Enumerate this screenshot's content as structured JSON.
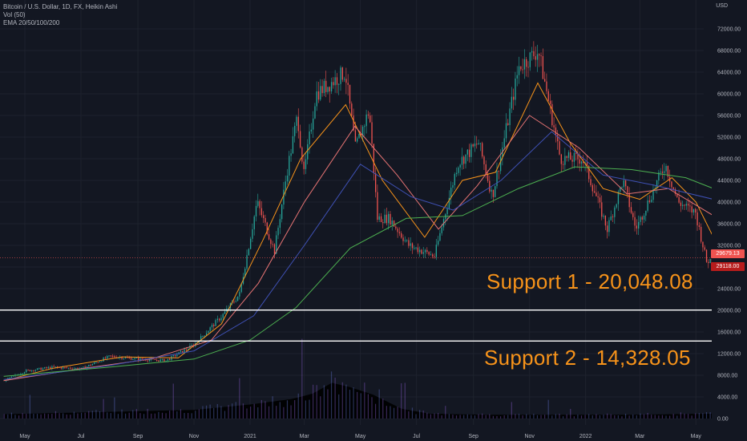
{
  "chart_header": {
    "symbol_line": "Bitcoin / U.S. Dollar, 1D, FX, Heikin Ashi",
    "volume_line": "Vol (50)",
    "ema_line": "EMA 20/50/100/200",
    "currency": "USD"
  },
  "colors": {
    "background": "#131722",
    "grid": "#1e222d",
    "bull": "#26a69a",
    "bear": "#ef5350",
    "ema20": "#f7931a",
    "ema50": "#e57373",
    "ema100": "#3f51b5",
    "ema200": "#4caf50",
    "support_line": "#ffffff",
    "callout_text": "#f7931a",
    "axis_text": "#b2b5be"
  },
  "annotations": {
    "support_1": "Support 1 - 20,048.08",
    "support_2": "Support 2 - 14,328.05"
  },
  "price_badges": {
    "last": "29679.13",
    "last_value": 29679.13,
    "second": "29118.00",
    "second_value": 29118.0
  },
  "chart_data": {
    "type": "candlestick",
    "title": "Bitcoin / U.S. Dollar, 1D, FX, Heikin Ashi",
    "y_label": "USD",
    "y_ticks": [
      "72000.00",
      "68000.00",
      "64000.00",
      "60000.00",
      "56000.00",
      "52000.00",
      "48000.00",
      "44000.00",
      "40000.00",
      "36000.00",
      "32000.00",
      "28000.00",
      "24000.00",
      "20000.00",
      "16000.00",
      "12000.00",
      "8000.00",
      "4000.00",
      "0.00"
    ],
    "x_ticks": [
      "May",
      "Jul",
      "Sep",
      "Nov",
      "2021",
      "Mar",
      "May",
      "Jul",
      "Sep",
      "Nov",
      "2022",
      "Mar",
      "May"
    ],
    "ylim": [
      0,
      74000
    ],
    "support_levels": [
      20048.08,
      14328.05
    ],
    "price_path": [
      [
        "2020-04-08",
        7000
      ],
      [
        "2020-05-01",
        8800
      ],
      [
        "2020-06-01",
        9500
      ],
      [
        "2020-07-01",
        9200
      ],
      [
        "2020-08-01",
        11500
      ],
      [
        "2020-09-01",
        11000
      ],
      [
        "2020-10-01",
        10700
      ],
      [
        "2020-11-01",
        13700
      ],
      [
        "2020-12-01",
        19000
      ],
      [
        "2020-12-20",
        23000
      ],
      [
        "2021-01-08",
        40000
      ],
      [
        "2021-01-27",
        31000
      ],
      [
        "2021-02-10",
        46000
      ],
      [
        "2021-02-21",
        56000
      ],
      [
        "2021-02-28",
        45000
      ],
      [
        "2021-03-13",
        60000
      ],
      [
        "2021-04-14",
        64000
      ],
      [
        "2021-04-25",
        50000
      ],
      [
        "2021-05-10",
        57000
      ],
      [
        "2021-05-19",
        37000
      ],
      [
        "2021-06-01",
        37000
      ],
      [
        "2021-06-22",
        32000
      ],
      [
        "2021-07-20",
        30000
      ],
      [
        "2021-08-14",
        47000
      ],
      [
        "2021-09-06",
        51000
      ],
      [
        "2021-09-21",
        41000
      ],
      [
        "2021-10-20",
        65000
      ],
      [
        "2021-11-10",
        68000
      ],
      [
        "2021-12-04",
        48000
      ],
      [
        "2021-12-28",
        48000
      ],
      [
        "2022-01-10",
        42000
      ],
      [
        "2022-01-24",
        35000
      ],
      [
        "2022-02-10",
        44000
      ],
      [
        "2022-02-24",
        35000
      ],
      [
        "2022-03-28",
        47000
      ],
      [
        "2022-04-11",
        40000
      ],
      [
        "2022-04-30",
        38000
      ],
      [
        "2022-05-12",
        29000
      ],
      [
        "2022-05-20",
        29600
      ]
    ],
    "ema_series": [
      {
        "name": "EMA 20",
        "values": [
          [
            "2020-04-08",
            7000
          ],
          [
            "2020-06-01",
            9300
          ],
          [
            "2020-08-15",
            11400
          ],
          [
            "2020-10-15",
            11200
          ],
          [
            "2020-12-01",
            17500
          ],
          [
            "2021-01-15",
            33000
          ],
          [
            "2021-02-25",
            48000
          ],
          [
            "2021-04-15",
            58000
          ],
          [
            "2021-05-25",
            44000
          ],
          [
            "2021-07-10",
            33500
          ],
          [
            "2021-08-20",
            44000
          ],
          [
            "2021-09-25",
            45500
          ],
          [
            "2021-11-10",
            62000
          ],
          [
            "2021-12-15",
            51000
          ],
          [
            "2022-01-20",
            42500
          ],
          [
            "2022-03-01",
            40500
          ],
          [
            "2022-04-05",
            44500
          ],
          [
            "2022-05-01",
            40000
          ],
          [
            "2022-05-20",
            33500
          ]
        ]
      },
      {
        "name": "EMA 50",
        "values": [
          [
            "2020-04-08",
            7000
          ],
          [
            "2020-07-01",
            9200
          ],
          [
            "2020-09-15",
            11000
          ],
          [
            "2020-11-20",
            14500
          ],
          [
            "2021-01-10",
            25000
          ],
          [
            "2021-03-01",
            40000
          ],
          [
            "2021-04-25",
            54000
          ],
          [
            "2021-06-10",
            45000
          ],
          [
            "2021-07-25",
            35000
          ],
          [
            "2021-09-05",
            43000
          ],
          [
            "2021-11-01",
            56000
          ],
          [
            "2021-12-25",
            50000
          ],
          [
            "2022-02-15",
            41500
          ],
          [
            "2022-04-01",
            42500
          ],
          [
            "2022-05-20",
            37500
          ]
        ]
      },
      {
        "name": "EMA 100",
        "values": [
          [
            "2020-04-08",
            7200
          ],
          [
            "2020-08-01",
            9800
          ],
          [
            "2020-11-01",
            12500
          ],
          [
            "2021-01-05",
            19000
          ],
          [
            "2021-03-01",
            32000
          ],
          [
            "2021-05-01",
            47000
          ],
          [
            "2021-06-25",
            41000
          ],
          [
            "2021-08-10",
            38500
          ],
          [
            "2021-10-01",
            44000
          ],
          [
            "2021-11-25",
            53000
          ],
          [
            "2022-01-20",
            45000
          ],
          [
            "2022-03-20",
            43000
          ],
          [
            "2022-05-20",
            40500
          ]
        ]
      },
      {
        "name": "EMA 200",
        "values": [
          [
            "2020-04-08",
            7800
          ],
          [
            "2020-08-01",
            9500
          ],
          [
            "2020-11-01",
            11000
          ],
          [
            "2021-01-01",
            14500
          ],
          [
            "2021-02-20",
            20500
          ],
          [
            "2021-04-20",
            31500
          ],
          [
            "2021-06-20",
            37000
          ],
          [
            "2021-08-20",
            37500
          ],
          [
            "2021-10-20",
            42500
          ],
          [
            "2021-12-20",
            46500
          ],
          [
            "2022-02-20",
            46000
          ],
          [
            "2022-04-20",
            44500
          ],
          [
            "2022-05-20",
            42500
          ]
        ]
      }
    ],
    "volume_profile": [
      [
        "2020-04-08",
        0.8
      ],
      [
        "2020-11-01",
        1.6
      ],
      [
        "2021-01-01",
        2.6
      ],
      [
        "2021-02-15",
        3.6
      ],
      [
        "2021-03-10",
        4.6
      ],
      [
        "2021-03-31",
        6.6
      ],
      [
        "2021-04-20",
        5.8
      ],
      [
        "2021-05-15",
        4.4
      ],
      [
        "2021-06-15",
        1.8
      ],
      [
        "2021-07-15",
        0.9
      ],
      [
        "2021-09-15",
        0.7
      ],
      [
        "2022-02-15",
        0.7
      ],
      [
        "2022-05-20",
        0.9
      ]
    ]
  }
}
